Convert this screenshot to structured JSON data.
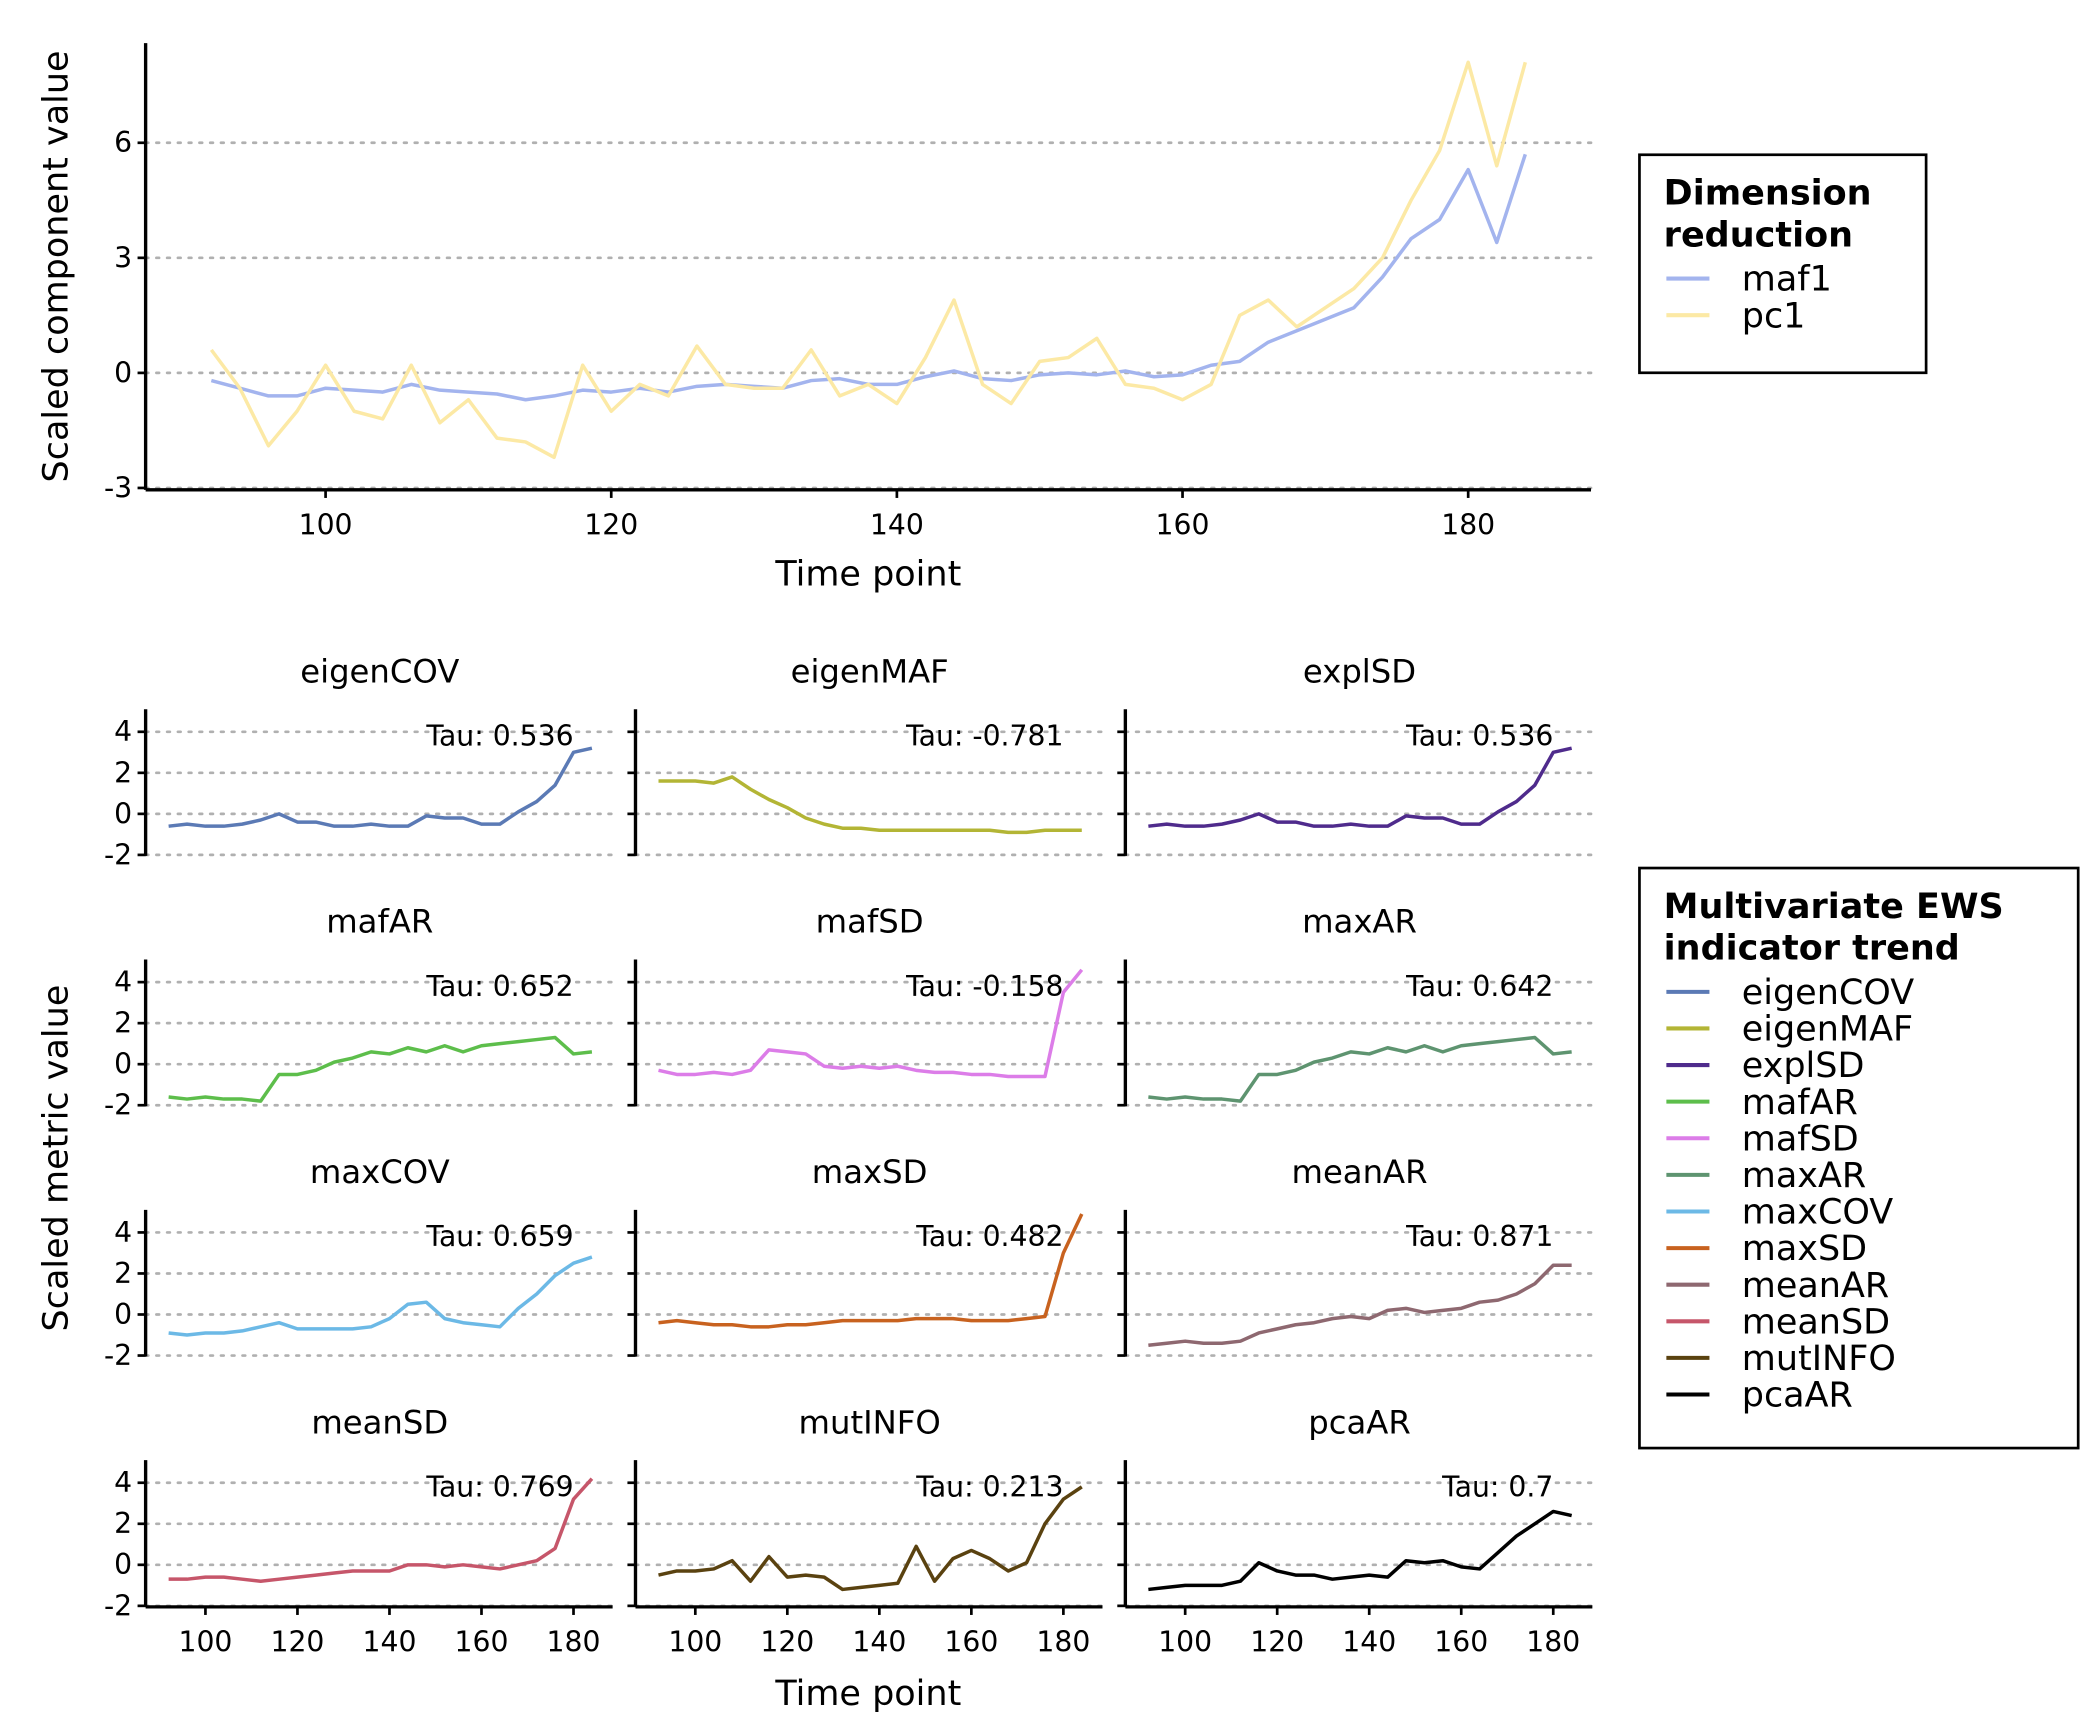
{
  "chart_data": [
    {
      "type": "line",
      "xlabel": "Time point",
      "ylabel": "Scaled component value",
      "legend_title": "Dimension reduction",
      "legend": "right",
      "grid": true,
      "xlim": [
        87.4,
        188.6
      ],
      "ylim": [
        -3.05,
        8.6
      ],
      "xticks": [
        100,
        120,
        140,
        160,
        180
      ],
      "yticks": [
        -3,
        0,
        3,
        6
      ],
      "x": [
        92,
        94,
        96,
        98,
        100,
        102,
        104,
        106,
        108,
        110,
        112,
        114,
        116,
        118,
        120,
        122,
        124,
        126,
        128,
        130,
        132,
        134,
        136,
        138,
        140,
        142,
        144,
        146,
        148,
        150,
        152,
        154,
        156,
        158,
        160,
        162,
        164,
        166,
        168,
        170,
        172,
        174,
        176,
        178,
        180,
        182,
        184
      ],
      "series": [
        {
          "name": "maf1",
          "color": "#a3b4ee",
          "values": [
            -0.2,
            -0.4,
            -0.6,
            -0.6,
            -0.4,
            -0.45,
            -0.5,
            -0.3,
            -0.45,
            -0.5,
            -0.55,
            -0.7,
            -0.6,
            -0.45,
            -0.5,
            -0.4,
            -0.5,
            -0.35,
            -0.3,
            -0.35,
            -0.4,
            -0.2,
            -0.15,
            -0.3,
            -0.3,
            -0.1,
            0.05,
            -0.15,
            -0.2,
            -0.05,
            0,
            -0.05,
            0.05,
            -0.1,
            -0.05,
            0.2,
            0.3,
            0.8,
            1.1,
            1.4,
            1.7,
            2.5,
            3.5,
            4.0,
            5.3,
            3.4,
            5.7
          ]
        },
        {
          "name": "pc1",
          "color": "#fce9a5",
          "values": [
            0.6,
            -0.4,
            -1.9,
            -1.0,
            0.2,
            -1.0,
            -1.2,
            0.2,
            -1.3,
            -0.7,
            -1.7,
            -1.8,
            -2.2,
            0.2,
            -1.0,
            -0.3,
            -0.6,
            0.7,
            -0.3,
            -0.4,
            -0.4,
            0.6,
            -0.6,
            -0.3,
            -0.8,
            0.4,
            1.9,
            -0.3,
            -0.8,
            0.3,
            0.4,
            0.9,
            -0.3,
            -0.4,
            -0.7,
            -0.3,
            1.5,
            1.9,
            1.2,
            1.7,
            2.2,
            3.0,
            4.5,
            5.8,
            8.1,
            5.4,
            8.1
          ]
        }
      ]
    },
    {
      "type": "line",
      "facet_columns": 3,
      "xlabel": "Time point",
      "ylabel": "Scaled metric value",
      "legend_title": "Multivariate EWS indicator trend",
      "legend": "right",
      "grid": true,
      "xlim": [
        87,
        188.5
      ],
      "ylim": [
        -2.05,
        5.1
      ],
      "xticks": [
        100,
        120,
        140,
        160,
        180
      ],
      "yticks": [
        -2,
        0,
        2,
        4
      ],
      "x": [
        92,
        96,
        100,
        104,
        108,
        112,
        116,
        120,
        124,
        128,
        132,
        136,
        140,
        144,
        148,
        152,
        156,
        160,
        164,
        168,
        172,
        176,
        180,
        184
      ],
      "series": [
        {
          "name": "eigenCOV",
          "annotation": "Tau: 0.536",
          "color": "#5b7ab5",
          "values": [
            -0.6,
            -0.5,
            -0.6,
            -0.6,
            -0.5,
            -0.3,
            0,
            -0.4,
            -0.4,
            -0.6,
            -0.6,
            -0.5,
            -0.6,
            -0.6,
            -0.1,
            -0.2,
            -0.2,
            -0.5,
            -0.5,
            0.1,
            0.6,
            1.4,
            3.0,
            3.2
          ]
        },
        {
          "name": "eigenMAF",
          "annotation": "Tau: -0.781",
          "color": "#b3b535",
          "values": [
            1.6,
            1.6,
            1.6,
            1.5,
            1.8,
            1.2,
            0.7,
            0.3,
            -0.2,
            -0.5,
            -0.7,
            -0.7,
            -0.8,
            -0.8,
            -0.8,
            -0.8,
            -0.8,
            -0.8,
            -0.8,
            -0.9,
            -0.9,
            -0.8,
            -0.8,
            -0.8
          ]
        },
        {
          "name": "explSD",
          "annotation": "Tau: 0.536",
          "color": "#4f2b8c",
          "values": [
            -0.6,
            -0.5,
            -0.6,
            -0.6,
            -0.5,
            -0.3,
            0,
            -0.4,
            -0.4,
            -0.6,
            -0.6,
            -0.5,
            -0.6,
            -0.6,
            -0.1,
            -0.2,
            -0.2,
            -0.5,
            -0.5,
            0.1,
            0.6,
            1.4,
            3.0,
            3.2
          ]
        },
        {
          "name": "mafAR",
          "annotation": "Tau: 0.652",
          "color": "#5dbe4b",
          "values": [
            -1.6,
            -1.7,
            -1.6,
            -1.7,
            -1.7,
            -1.8,
            -0.5,
            -0.5,
            -0.3,
            0.1,
            0.3,
            0.6,
            0.5,
            0.8,
            0.6,
            0.9,
            0.6,
            0.9,
            1.0,
            1.1,
            1.2,
            1.3,
            0.5,
            0.6
          ]
        },
        {
          "name": "mafSD",
          "annotation": "Tau: -0.158",
          "color": "#dc7de8",
          "values": [
            -0.3,
            -0.5,
            -0.5,
            -0.4,
            -0.5,
            -0.3,
            0.7,
            0.6,
            0.5,
            -0.1,
            -0.2,
            -0.1,
            -0.2,
            -0.1,
            -0.3,
            -0.4,
            -0.4,
            -0.5,
            -0.5,
            -0.6,
            -0.6,
            -0.6,
            3.5,
            4.6
          ]
        },
        {
          "name": "maxAR",
          "annotation": "Tau: 0.642",
          "color": "#5e9470",
          "values": [
            -1.6,
            -1.7,
            -1.6,
            -1.7,
            -1.7,
            -1.8,
            -0.5,
            -0.5,
            -0.3,
            0.1,
            0.3,
            0.6,
            0.5,
            0.8,
            0.6,
            0.9,
            0.6,
            0.9,
            1.0,
            1.1,
            1.2,
            1.3,
            0.5,
            0.6
          ]
        },
        {
          "name": "maxCOV",
          "annotation": "Tau: 0.659",
          "color": "#6cb9e6",
          "values": [
            -0.9,
            -1.0,
            -0.9,
            -0.9,
            -0.8,
            -0.6,
            -0.4,
            -0.7,
            -0.7,
            -0.7,
            -0.7,
            -0.6,
            -0.2,
            0.5,
            0.6,
            -0.2,
            -0.4,
            -0.5,
            -0.6,
            0.3,
            1.0,
            1.9,
            2.5,
            2.8
          ]
        },
        {
          "name": "maxSD",
          "annotation": "Tau: 0.482",
          "color": "#c8621f",
          "values": [
            -0.4,
            -0.3,
            -0.4,
            -0.5,
            -0.5,
            -0.6,
            -0.6,
            -0.5,
            -0.5,
            -0.4,
            -0.3,
            -0.3,
            -0.3,
            -0.3,
            -0.2,
            -0.2,
            -0.2,
            -0.3,
            -0.3,
            -0.3,
            -0.2,
            -0.1,
            3.0,
            4.9
          ]
        },
        {
          "name": "meanAR",
          "annotation": "Tau: 0.871",
          "color": "#8e6870",
          "values": [
            -1.5,
            -1.4,
            -1.3,
            -1.4,
            -1.4,
            -1.3,
            -0.9,
            -0.7,
            -0.5,
            -0.4,
            -0.2,
            -0.1,
            -0.2,
            0.2,
            0.3,
            0.1,
            0.2,
            0.3,
            0.6,
            0.7,
            1.0,
            1.5,
            2.4,
            2.4
          ]
        },
        {
          "name": "meanSD",
          "annotation": "Tau: 0.769",
          "color": "#c6566a",
          "values": [
            -0.7,
            -0.7,
            -0.6,
            -0.6,
            -0.7,
            -0.8,
            -0.7,
            -0.6,
            -0.5,
            -0.4,
            -0.3,
            -0.3,
            -0.3,
            0,
            0,
            -0.1,
            0,
            -0.1,
            -0.2,
            0,
            0.2,
            0.8,
            3.2,
            4.2
          ]
        },
        {
          "name": "mutINFO",
          "annotation": "Tau: 0.213",
          "color": "#5a4210",
          "values": [
            -0.5,
            -0.3,
            -0.3,
            -0.2,
            0.2,
            -0.8,
            0.4,
            -0.6,
            -0.5,
            -0.6,
            -1.2,
            -1.1,
            -1.0,
            -0.9,
            0.9,
            -0.8,
            0.3,
            0.7,
            0.3,
            -0.3,
            0.1,
            2.0,
            3.2,
            3.8
          ]
        },
        {
          "name": "pcaAR",
          "annotation": "Tau: 0.7",
          "color": "#000000",
          "values": [
            -1.2,
            -1.1,
            -1.0,
            -1.0,
            -1.0,
            -0.8,
            0.1,
            -0.3,
            -0.5,
            -0.5,
            -0.7,
            -0.6,
            -0.5,
            -0.6,
            0.2,
            0.1,
            0.2,
            -0.1,
            -0.2,
            0.6,
            1.4,
            2.0,
            2.6,
            2.4
          ]
        }
      ]
    }
  ]
}
